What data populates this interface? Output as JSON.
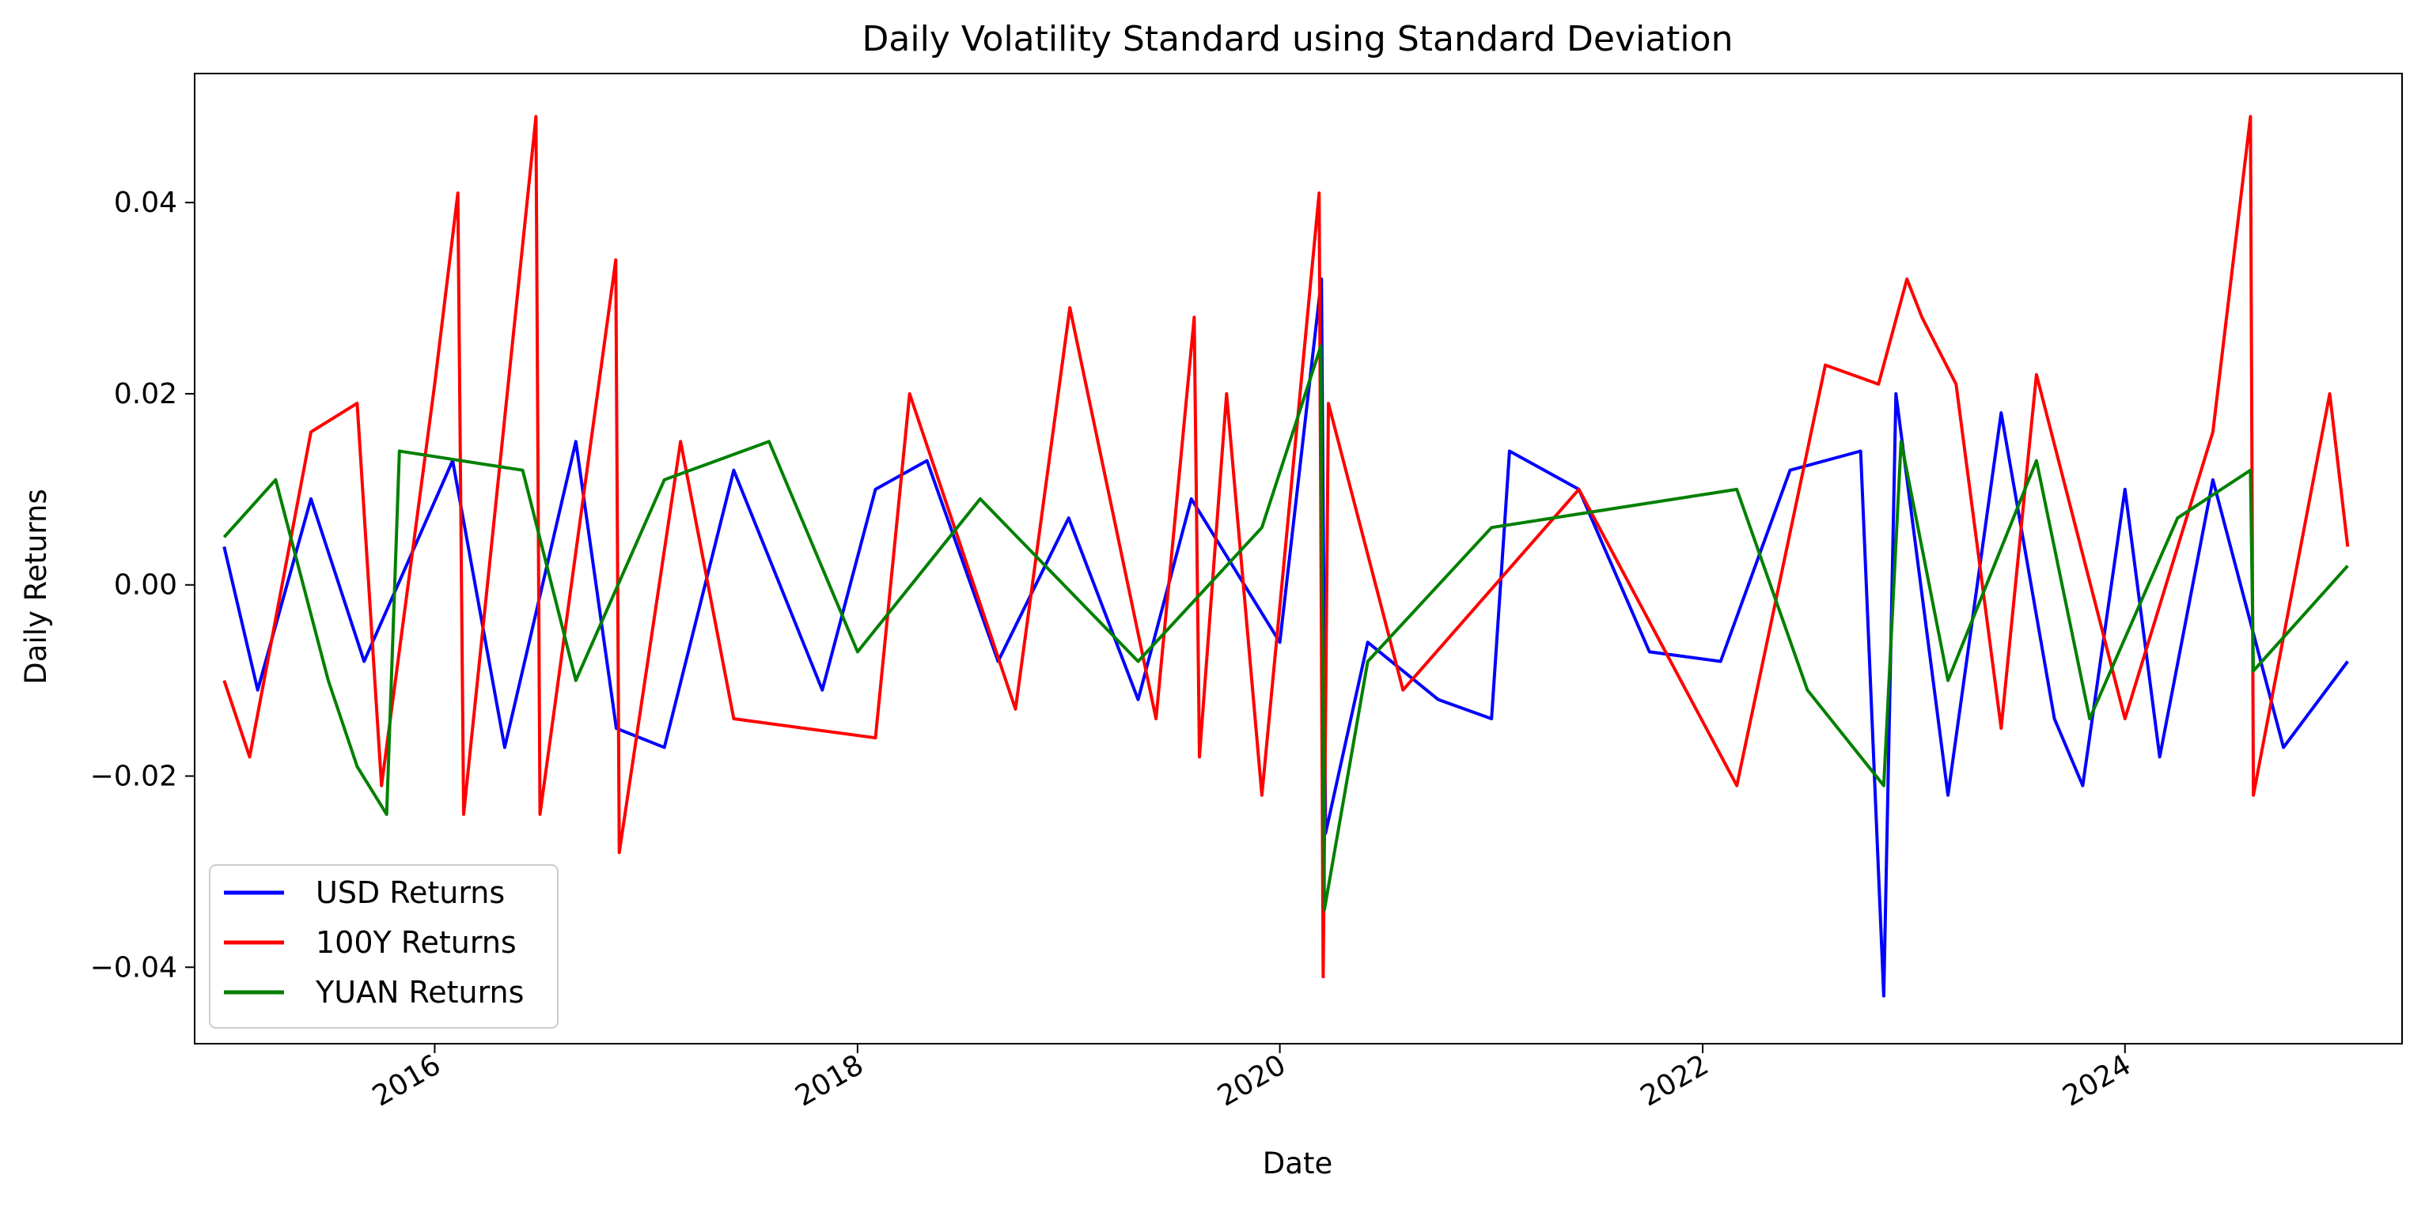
{
  "chart_data": {
    "type": "line",
    "title": "Daily Volatility Standard using Standard Deviation",
    "xlabel": "Date",
    "ylabel": "Daily Returns",
    "xlim": [
      "2014-11-12",
      "2025-04-24"
    ],
    "ylim": [
      -0.048,
      0.0535
    ],
    "x_ticks": [
      "2016-01-01",
      "2018-01-01",
      "2020-01-01",
      "2022-01-01",
      "2024-01-01"
    ],
    "x_tick_labels": [
      "2016",
      "2018",
      "2020",
      "2022",
      "2024"
    ],
    "y_ticks": [
      -0.04,
      -0.02,
      0.0,
      0.02,
      0.04
    ],
    "y_tick_labels": [
      "−0.04",
      "−0.02",
      "0.00",
      "0.02",
      "0.04"
    ],
    "grid": false,
    "legend_position": "lower-left",
    "series": [
      {
        "name": "USD Returns",
        "color": "#0000ff",
        "points": [
          [
            "2015-01-02",
            0.004
          ],
          [
            "2015-03-01",
            -0.011
          ],
          [
            "2015-06-01",
            0.009
          ],
          [
            "2015-09-01",
            -0.008
          ],
          [
            "2016-02-01",
            0.013
          ],
          [
            "2016-05-01",
            -0.017
          ],
          [
            "2016-09-01",
            0.015
          ],
          [
            "2016-11-10",
            -0.015
          ],
          [
            "2017-02-01",
            -0.017
          ],
          [
            "2017-06-01",
            0.012
          ],
          [
            "2017-11-01",
            -0.011
          ],
          [
            "2018-02-01",
            0.01
          ],
          [
            "2018-05-01",
            0.013
          ],
          [
            "2018-09-01",
            -0.008
          ],
          [
            "2019-01-01",
            0.007
          ],
          [
            "2019-05-01",
            -0.012
          ],
          [
            "2019-08-01",
            0.009
          ],
          [
            "2020-01-01",
            -0.006
          ],
          [
            "2020-03-13",
            0.032
          ],
          [
            "2020-03-20",
            -0.026
          ],
          [
            "2020-06-01",
            -0.006
          ],
          [
            "2020-10-01",
            -0.012
          ],
          [
            "2021-01-01",
            -0.014
          ],
          [
            "2021-02-01",
            0.014
          ],
          [
            "2021-06-01",
            0.01
          ],
          [
            "2021-10-01",
            -0.007
          ],
          [
            "2022-02-01",
            -0.008
          ],
          [
            "2022-06-01",
            0.012
          ],
          [
            "2022-10-01",
            0.014
          ],
          [
            "2022-11-10",
            -0.043
          ],
          [
            "2022-12-01",
            0.02
          ],
          [
            "2023-03-01",
            -0.022
          ],
          [
            "2023-06-01",
            0.018
          ],
          [
            "2023-09-01",
            -0.014
          ],
          [
            "2023-10-20",
            -0.021
          ],
          [
            "2024-01-01",
            0.01
          ],
          [
            "2024-03-01",
            -0.018
          ],
          [
            "2024-06-01",
            0.011
          ],
          [
            "2024-10-01",
            -0.017
          ],
          [
            "2025-01-20",
            -0.008
          ]
        ]
      },
      {
        "name": "100Y Returns",
        "color": "#ff0000",
        "points": [
          [
            "2015-01-02",
            -0.01
          ],
          [
            "2015-02-15",
            -0.018
          ],
          [
            "2015-06-01",
            0.016
          ],
          [
            "2015-08-20",
            0.019
          ],
          [
            "2015-10-01",
            -0.021
          ],
          [
            "2016-01-01",
            0.021
          ],
          [
            "2016-02-10",
            0.041
          ],
          [
            "2016-02-20",
            -0.024
          ],
          [
            "2016-06-24",
            0.049
          ],
          [
            "2016-07-01",
            -0.024
          ],
          [
            "2016-11-09",
            0.034
          ],
          [
            "2016-11-15",
            -0.028
          ],
          [
            "2017-03-01",
            0.015
          ],
          [
            "2017-06-01",
            -0.014
          ],
          [
            "2018-02-01",
            -0.016
          ],
          [
            "2018-04-01",
            0.02
          ],
          [
            "2018-10-01",
            -0.013
          ],
          [
            "2019-01-03",
            0.029
          ],
          [
            "2019-06-01",
            -0.014
          ],
          [
            "2019-08-06",
            0.028
          ],
          [
            "2019-08-15",
            -0.018
          ],
          [
            "2019-10-01",
            0.02
          ],
          [
            "2019-12-01",
            -0.022
          ],
          [
            "2020-03-09",
            0.041
          ],
          [
            "2020-03-16",
            -0.041
          ],
          [
            "2020-03-25",
            0.019
          ],
          [
            "2020-08-01",
            -0.011
          ],
          [
            "2021-06-01",
            0.01
          ],
          [
            "2022-03-01",
            -0.021
          ],
          [
            "2022-08-01",
            0.023
          ],
          [
            "2022-11-01",
            0.021
          ],
          [
            "2022-12-20",
            0.032
          ],
          [
            "2023-01-15",
            0.028
          ],
          [
            "2023-03-15",
            0.021
          ],
          [
            "2023-06-01",
            -0.015
          ],
          [
            "2023-08-01",
            0.022
          ],
          [
            "2024-01-01",
            -0.014
          ],
          [
            "2024-06-01",
            0.016
          ],
          [
            "2024-08-05",
            0.049
          ],
          [
            "2024-08-10",
            -0.022
          ],
          [
            "2024-12-20",
            0.02
          ],
          [
            "2025-01-20",
            0.004
          ]
        ]
      },
      {
        "name": "YUAN Returns",
        "color": "#008000",
        "points": [
          [
            "2015-01-02",
            0.005
          ],
          [
            "2015-04-01",
            0.011
          ],
          [
            "2015-07-01",
            -0.01
          ],
          [
            "2015-08-20",
            -0.019
          ],
          [
            "2015-10-10",
            -0.024
          ],
          [
            "2015-11-01",
            0.014
          ],
          [
            "2016-06-01",
            0.012
          ],
          [
            "2016-09-01",
            -0.01
          ],
          [
            "2017-02-01",
            0.011
          ],
          [
            "2017-08-01",
            0.015
          ],
          [
            "2018-01-01",
            -0.007
          ],
          [
            "2018-08-01",
            0.009
          ],
          [
            "2019-05-01",
            -0.008
          ],
          [
            "2019-12-01",
            0.006
          ],
          [
            "2020-03-12",
            0.025
          ],
          [
            "2020-03-18",
            -0.034
          ],
          [
            "2020-06-01",
            -0.008
          ],
          [
            "2021-01-01",
            0.006
          ],
          [
            "2022-03-01",
            0.01
          ],
          [
            "2022-07-01",
            -0.011
          ],
          [
            "2022-11-10",
            -0.021
          ],
          [
            "2022-12-10",
            0.015
          ],
          [
            "2023-03-01",
            -0.01
          ],
          [
            "2023-08-01",
            0.013
          ],
          [
            "2023-11-01",
            -0.014
          ],
          [
            "2024-04-01",
            0.007
          ],
          [
            "2024-08-05",
            0.012
          ],
          [
            "2024-08-10",
            -0.009
          ],
          [
            "2025-01-20",
            0.002
          ]
        ]
      }
    ]
  }
}
